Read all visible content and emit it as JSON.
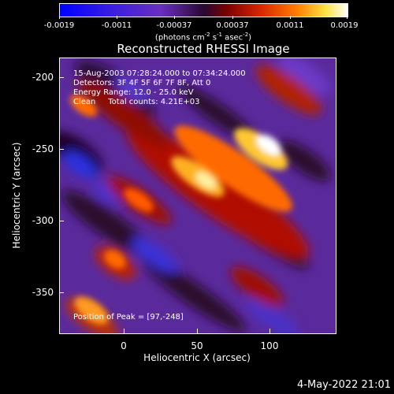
{
  "colorbar": {
    "ticks": [
      "-0.0019",
      "-0.0011",
      "-0.00037",
      "0.00037",
      "0.0011",
      "0.0019"
    ],
    "units_prefix": "(photons cm",
    "units_exp1": "-2",
    "units_mid1": " s",
    "units_exp2": "-1",
    "units_mid2": " asec",
    "units_exp3": "-2",
    "units_suffix": ")"
  },
  "title": "Reconstructed RHESSI Image",
  "info": {
    "time_range": "15-Aug-2003 07:28:24.000 to 07:34:24.000",
    "detectors": "Detectors: 3F 4F 5F 6F 7F 8F, Att 0",
    "energy": "Energy Range: 12.0 - 25.0 keV",
    "clean": "Clean     Total counts: 4.21E+03",
    "peak": "Position of Peak = [97,-248]"
  },
  "axes": {
    "xlabel": "Heliocentric X (arcsec)",
    "ylabel": "Heliocentric Y (arcsec)",
    "xticks": [
      "0",
      "50",
      "100"
    ],
    "yticks": [
      "-200",
      "-250",
      "-300",
      "-350"
    ]
  },
  "timestamp": "4-May-2022 21:01"
}
